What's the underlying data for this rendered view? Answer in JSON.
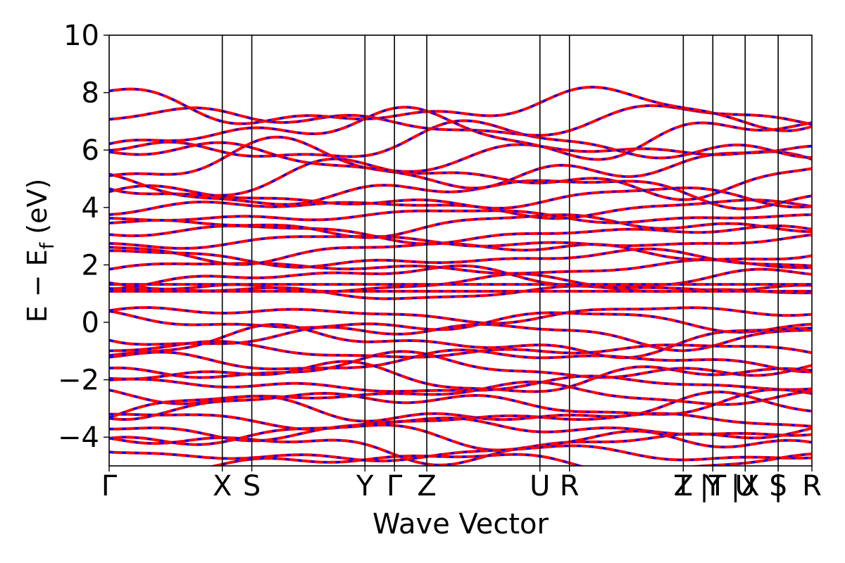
{
  "chart_data": {
    "type": "line",
    "title": "",
    "xlabel": "Wave Vector",
    "ylabel": {
      "main": "E − E",
      "sub": "f",
      "unit": " (eV)"
    },
    "ylim": [
      -5,
      10
    ],
    "yticks": [
      {
        "value": -4,
        "label": "−4"
      },
      {
        "value": -2,
        "label": "−2"
      },
      {
        "value": 0,
        "label": "0"
      },
      {
        "value": 2,
        "label": "2"
      },
      {
        "value": 4,
        "label": "4"
      },
      {
        "value": 6,
        "label": "6"
      },
      {
        "value": 8,
        "label": "8"
      },
      {
        "value": 10,
        "label": "10"
      }
    ],
    "xlim": [
      0,
      1
    ],
    "kpoints": [
      {
        "x": 0.0,
        "label": "Γ"
      },
      {
        "x": 0.161,
        "label": "X"
      },
      {
        "x": 0.203,
        "label": "S"
      },
      {
        "x": 0.364,
        "label": "Y"
      },
      {
        "x": 0.406,
        "label": "Γ"
      },
      {
        "x": 0.452,
        "label": "Z"
      },
      {
        "x": 0.613,
        "label": "U"
      },
      {
        "x": 0.655,
        "label": "R"
      },
      {
        "x": 0.817,
        "label": "T"
      },
      {
        "x": 0.817,
        "label": "Z"
      },
      {
        "x": 0.859,
        "label": "|T"
      },
      {
        "x": 0.859,
        "label": "Y"
      },
      {
        "x": 0.905,
        "label": "|X"
      },
      {
        "x": 0.905,
        "label": "U"
      },
      {
        "x": 0.952,
        "label": "|"
      },
      {
        "x": 0.952,
        "label": "S"
      },
      {
        "x": 1.0,
        "label": "R"
      }
    ],
    "series": [
      {
        "style": "solid",
        "color": "#ff0000"
      },
      {
        "style": "dashed",
        "color": "#0000ff"
      }
    ],
    "valence_band_energies": [
      0.3,
      0.0,
      -0.4,
      -0.7,
      -1.0,
      -1.3,
      -1.6,
      -1.9,
      -2.2,
      -2.5,
      -2.8,
      -3.1,
      -3.4,
      -3.7,
      -4.0,
      -4.3,
      -4.6,
      -4.85
    ],
    "conduction_band_energies": [
      1.05,
      1.3,
      1.6,
      1.9,
      2.2,
      2.5,
      2.8,
      3.1,
      3.4,
      3.7,
      4.0,
      4.3,
      4.6,
      5.0,
      5.4,
      5.8,
      6.2,
      6.6,
      7.0,
      7.4
    ],
    "flat_band_energies": [
      1.08,
      1.32
    ],
    "grid": false,
    "legend": "none"
  }
}
